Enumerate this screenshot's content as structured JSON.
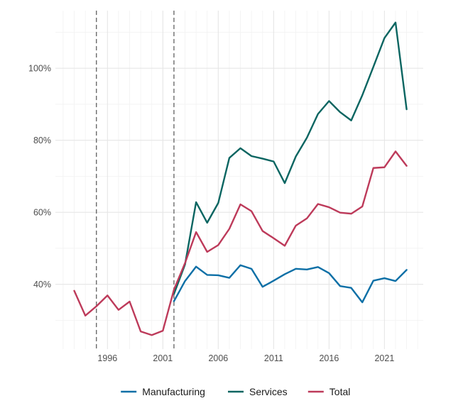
{
  "chart_data": {
    "type": "line",
    "title": "",
    "xlabel": "",
    "ylabel": "",
    "xlim": [
      1991.3,
      2024.5
    ],
    "ylim": [
      22,
      116
    ],
    "x_ticks": [
      1996,
      2001,
      2006,
      2011,
      2016,
      2021
    ],
    "y_ticks": [
      40,
      60,
      80,
      100
    ],
    "y_tick_labels": [
      "40%",
      "60%",
      "80%",
      "100%"
    ],
    "grid": true,
    "legend_position": "bottom",
    "vlines": [
      1995,
      2002
    ],
    "series": [
      {
        "name": "Manufacturing",
        "color": "#0c6fa6",
        "x": [
          2002,
          2003,
          2004,
          2005,
          2006,
          2007,
          2008,
          2009,
          2010,
          2011,
          2012,
          2013,
          2014,
          2015,
          2016,
          2017,
          2018,
          2019,
          2020,
          2021,
          2022,
          2023
        ],
        "y": [
          35.3,
          40.9,
          44.9,
          42.6,
          42.5,
          41.8,
          45.3,
          44.3,
          39.3,
          41.0,
          42.8,
          44.3,
          44.1,
          44.8,
          43.1,
          39.5,
          39.0,
          35.0,
          41.0,
          41.7,
          40.9,
          44.0
        ]
      },
      {
        "name": "Services",
        "color": "#0a6561",
        "x": [
          2002,
          2003,
          2004,
          2005,
          2006,
          2007,
          2008,
          2009,
          2010,
          2011,
          2012,
          2013,
          2014,
          2015,
          2016,
          2017,
          2018,
          2019,
          2020,
          2021,
          2022,
          2023
        ],
        "y": [
          37.3,
          45.5,
          62.8,
          57.1,
          62.6,
          75.1,
          77.8,
          75.6,
          74.9,
          74.1,
          68.1,
          75.5,
          80.7,
          87.3,
          90.9,
          87.8,
          85.5,
          92.5,
          100.4,
          108.4,
          112.7,
          88.6
        ]
      },
      {
        "name": "Total",
        "color": "#bd3a5a",
        "x": [
          1993,
          1994,
          1995,
          1996,
          1997,
          1998,
          1999,
          2000,
          2001,
          2002,
          2003,
          2004,
          2005,
          2006,
          2007,
          2008,
          2009,
          2010,
          2011,
          2012,
          2013,
          2014,
          2015,
          2016,
          2017,
          2018,
          2019,
          2020,
          2021,
          2022,
          2023
        ],
        "y": [
          38.2,
          31.3,
          33.9,
          36.9,
          32.9,
          35.2,
          26.9,
          25.9,
          27.1,
          38.5,
          45.9,
          54.5,
          49.0,
          50.9,
          55.4,
          62.2,
          60.3,
          54.8,
          52.8,
          50.7,
          56.3,
          58.3,
          62.3,
          61.4,
          59.9,
          59.6,
          61.6,
          72.3,
          72.5,
          76.9,
          72.9
        ]
      }
    ]
  }
}
